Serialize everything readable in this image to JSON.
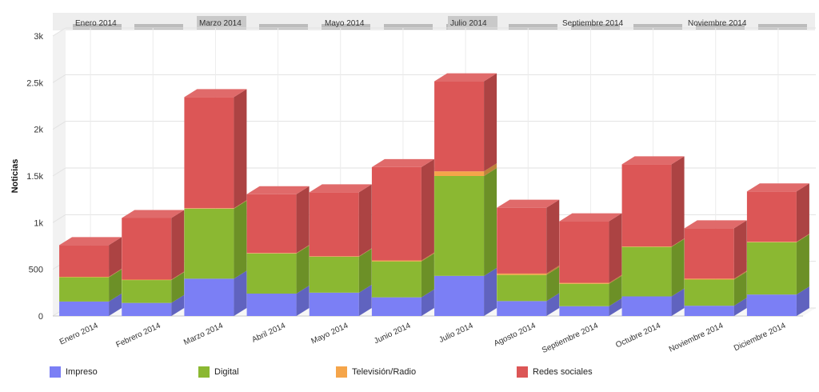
{
  "chart_data": {
    "type": "bar",
    "stacked": true,
    "three_d": true,
    "ylabel": "Noticias",
    "ylim": [
      0,
      3000
    ],
    "yticks": [
      "0",
      "500",
      "1k",
      "1.5k",
      "2k",
      "2.5k",
      "3k"
    ],
    "categories": [
      "Enero 2014",
      "Febrero 2014",
      "Marzo 2014",
      "Abril 2014",
      "Mayo 2014",
      "Junio 2014",
      "Julio 2014",
      "Agosto 2014",
      "Septiembre 2014",
      "Octubre 2014",
      "Noviembre 2014",
      "Diciembre 2014"
    ],
    "navigator_labels": [
      "Enero 2014",
      "Marzo 2014",
      "Mayo 2014",
      "Julio 2014",
      "Septiembre 2014",
      "Noviembre 2014"
    ],
    "series": [
      {
        "name": "Impreso",
        "color": "#7b7ff5",
        "values": [
          155,
          140,
          400,
          240,
          250,
          200,
          430,
          160,
          105,
          210,
          110,
          230
        ]
      },
      {
        "name": "Digital",
        "color": "#8bb832",
        "values": [
          260,
          245,
          750,
          430,
          385,
          385,
          1070,
          280,
          240,
          530,
          280,
          560
        ]
      },
      {
        "name": "Televisión/Radio",
        "color": "#f5a54a",
        "values": [
          5,
          5,
          5,
          5,
          5,
          10,
          50,
          15,
          10,
          5,
          10,
          5
        ]
      },
      {
        "name": "Redes sociales",
        "color": "#dc5656",
        "values": [
          340,
          660,
          1190,
          630,
          685,
          1000,
          965,
          705,
          660,
          880,
          540,
          540
        ]
      }
    ],
    "grid": true,
    "legend_position": "bottom"
  }
}
